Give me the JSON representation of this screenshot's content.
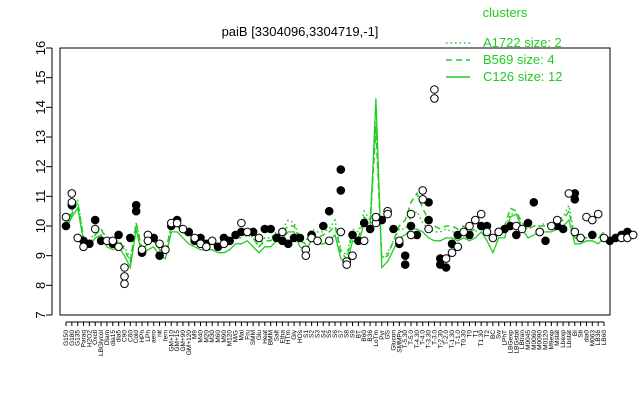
{
  "chart_data": {
    "type": "line",
    "title": "paiB [3304096,3304719,-1]",
    "xlabel": "",
    "ylabel": "",
    "ylim": [
      7,
      16
    ],
    "y_ticks": [
      7,
      8,
      9,
      10,
      11,
      12,
      13,
      14,
      15,
      16
    ],
    "x_tick_labels": [
      "G150",
      "G180",
      "G135",
      "Paraq",
      "H2O2",
      "Oxctl",
      "LBGlycol",
      "Diam",
      "dia15",
      "dia5",
      "C90",
      "C60",
      "Cold",
      "HPh",
      "LPh",
      "aero",
      "nit",
      "fern",
      "GM+10",
      "GM+15",
      "GM+90",
      "GM+120",
      "M9",
      "M40",
      "M20",
      "M30",
      "M60",
      "M90",
      "M120",
      "M/G",
      "Mal",
      "Fru",
      "SMM",
      "Glu",
      "Heat",
      "BMM",
      "Salt",
      "Etha",
      "HTm",
      "Gly",
      "HOs",
      "S1",
      "S2",
      "S3",
      "S4",
      "S5",
      "S6",
      "S7",
      "S8",
      "S9",
      "BT",
      "B60",
      "B36",
      "LoTm",
      "Pyr",
      "GS",
      "Glucon",
      "SMMPy",
      "T-5.30",
      "T-5.0",
      "T-4.30",
      "T-4.0",
      "T-3.30",
      "T-3.0",
      "T-2.30",
      "T-2.0",
      "T-1.30",
      "T-1.0",
      "T0.30",
      "T0",
      "T1",
      "T1.30",
      "T2",
      "BC",
      "Sw",
      "LPhT",
      "LBGexp",
      "LBGstat",
      "LBtran",
      "M0045",
      "M0060",
      "M0090",
      "M0120",
      "M9exp",
      "Mstat",
      "Lbexp",
      "Lbstat",
      "BI",
      "Sti",
      "dia0",
      "M063",
      "LB36",
      "LB60"
    ],
    "clusters_title": "clusters",
    "legend_position": "top-right",
    "series": [
      {
        "name": "A1722 size: 2",
        "style": "dotted",
        "values": [
          10.1,
          10.5,
          10.9,
          9.6,
          9.5,
          9.8,
          9.9,
          9.6,
          9.4,
          9.5,
          9.3,
          8.9,
          10.1,
          9.2,
          9.5,
          9.6,
          9.2,
          9.1,
          10.0,
          10.0,
          9.9,
          9.7,
          9.5,
          9.5,
          9.4,
          9.5,
          9.4,
          9.3,
          9.5,
          9.7,
          9.7,
          9.8,
          9.6,
          9.3,
          9.6,
          9.6,
          9.8,
          9.9,
          10.2,
          10.1,
          9.6,
          9.5,
          9.9,
          9.8,
          9.8,
          9.9,
          10.2,
          9.2,
          9.0,
          9.9,
          9.8,
          10.5,
          10.2,
          13.5,
          8.9,
          9.1,
          9.5,
          9.9,
          9.9,
          10.3,
          10.5,
          10.1,
          9.9,
          9.8,
          9.8,
          9.9,
          9.8,
          9.8,
          9.9,
          9.7,
          9.8,
          10.0,
          9.8,
          9.5,
          9.9,
          9.9,
          10.4,
          10.4,
          10.0,
          9.9,
          10.0,
          10.0,
          10.1,
          10.0,
          10.2,
          10.3,
          10.7,
          9.6,
          9.6,
          9.6,
          9.6,
          9.6,
          9.7
        ]
      },
      {
        "name": "B569 size: 4",
        "style": "dashed",
        "values": [
          10.0,
          10.4,
          10.8,
          9.6,
          9.4,
          9.7,
          9.9,
          9.5,
          9.4,
          9.5,
          9.2,
          8.8,
          10.1,
          9.2,
          9.4,
          9.5,
          9.2,
          9.1,
          10.0,
          10.0,
          9.8,
          9.6,
          9.5,
          9.4,
          9.4,
          9.4,
          9.3,
          9.3,
          9.4,
          9.6,
          9.6,
          9.7,
          9.6,
          9.3,
          9.5,
          9.5,
          9.7,
          9.8,
          10.0,
          10.0,
          9.5,
          9.4,
          9.8,
          9.6,
          9.7,
          9.8,
          10.0,
          9.1,
          8.9,
          9.8,
          9.6,
          10.3,
          10.1,
          13.3,
          8.9,
          9.0,
          9.5,
          10.0,
          10.2,
          10.8,
          11.1,
          10.6,
          10.2,
          10.0,
          9.9,
          10.0,
          10.0,
          9.9,
          10.0,
          9.8,
          9.9,
          10.1,
          9.9,
          9.6,
          9.9,
          10.0,
          10.6,
          10.5,
          10.1,
          9.9,
          10.0,
          10.0,
          10.0,
          10.0,
          10.1,
          10.2,
          10.5,
          9.6,
          9.6,
          9.6,
          9.7,
          9.6,
          9.8
        ]
      },
      {
        "name": "C126 size: 12",
        "style": "solid",
        "values": [
          9.9,
          10.3,
          10.6,
          9.5,
          9.3,
          9.6,
          9.7,
          9.3,
          9.2,
          9.3,
          9.0,
          8.6,
          9.9,
          9.0,
          9.2,
          9.3,
          9.0,
          8.9,
          9.8,
          9.8,
          9.6,
          9.4,
          9.3,
          9.2,
          9.2,
          9.2,
          9.1,
          9.1,
          9.2,
          9.4,
          9.4,
          9.5,
          9.3,
          9.1,
          9.3,
          9.3,
          9.5,
          9.6,
          9.8,
          9.8,
          9.3,
          9.2,
          9.5,
          9.4,
          9.4,
          9.5,
          9.7,
          8.9,
          8.7,
          9.5,
          9.4,
          10.1,
          9.8,
          14.3,
          8.6,
          8.8,
          9.2,
          9.6,
          9.7,
          9.9,
          9.9,
          9.8,
          9.6,
          9.5,
          9.5,
          9.6,
          9.6,
          9.5,
          9.6,
          9.5,
          9.6,
          9.8,
          9.5,
          9.1,
          9.6,
          9.6,
          10.3,
          10.4,
          9.9,
          9.6,
          9.7,
          9.8,
          9.8,
          9.8,
          9.9,
          10.0,
          10.2,
          9.4,
          9.4,
          9.5,
          9.5,
          9.4,
          9.6
        ]
      }
    ],
    "points_open": [
      [
        1,
        10.3
      ],
      [
        2,
        10.8
      ],
      [
        2,
        11.1
      ],
      [
        3,
        9.6
      ],
      [
        4,
        9.3
      ],
      [
        6,
        9.9
      ],
      [
        8,
        9.5
      ],
      [
        9,
        9.5
      ],
      [
        10,
        9.3
      ],
      [
        11,
        8.3
      ],
      [
        11,
        8.05
      ],
      [
        11,
        8.6
      ],
      [
        14,
        9.2
      ],
      [
        15,
        9.7
      ],
      [
        15,
        9.5
      ],
      [
        17,
        9.4
      ],
      [
        18,
        9.2
      ],
      [
        19,
        10.1
      ],
      [
        20,
        10.1
      ],
      [
        21,
        9.9
      ],
      [
        23,
        9.6
      ],
      [
        24,
        9.4
      ],
      [
        25,
        9.3
      ],
      [
        26,
        9.5
      ],
      [
        28,
        9.4
      ],
      [
        31,
        10.1
      ],
      [
        32,
        9.8
      ],
      [
        34,
        9.6
      ],
      [
        38,
        9.8
      ],
      [
        42,
        9.2
      ],
      [
        42,
        9.0
      ],
      [
        43,
        9.6
      ],
      [
        44,
        9.5
      ],
      [
        46,
        9.5
      ],
      [
        48,
        9.8
      ],
      [
        49,
        8.8
      ],
      [
        49,
        8.7
      ],
      [
        50,
        9.0
      ],
      [
        52,
        9.5
      ],
      [
        54,
        10.1
      ],
      [
        54,
        10.3
      ],
      [
        56,
        10.5
      ],
      [
        56,
        10.4
      ],
      [
        58,
        9.5
      ],
      [
        60,
        10.4
      ],
      [
        60,
        9.7
      ],
      [
        62,
        10.9
      ],
      [
        62,
        11.2
      ],
      [
        63,
        9.9
      ],
      [
        64,
        14.6
      ],
      [
        64,
        14.3
      ],
      [
        66,
        8.9
      ],
      [
        67,
        9.1
      ],
      [
        68,
        9.3
      ],
      [
        69,
        9.8
      ],
      [
        70,
        10.0
      ],
      [
        71,
        10.2
      ],
      [
        72,
        10.4
      ],
      [
        73,
        9.8
      ],
      [
        74,
        9.6
      ],
      [
        75,
        9.8
      ],
      [
        78,
        10.0
      ],
      [
        79,
        9.9
      ],
      [
        82,
        9.8
      ],
      [
        84,
        10.0
      ],
      [
        85,
        10.2
      ],
      [
        87,
        11.1
      ],
      [
        88,
        9.8
      ],
      [
        89,
        9.6
      ],
      [
        90,
        10.3
      ],
      [
        91,
        10.2
      ],
      [
        92,
        10.4
      ],
      [
        93,
        9.6
      ],
      [
        96,
        9.6
      ],
      [
        97,
        9.6
      ],
      [
        98,
        9.7
      ]
    ],
    "points_filled": [
      [
        1,
        10.0
      ],
      [
        2,
        10.7
      ],
      [
        4,
        9.5
      ],
      [
        5,
        9.4
      ],
      [
        6,
        10.2
      ],
      [
        7,
        9.5
      ],
      [
        9,
        9.4
      ],
      [
        10,
        9.7
      ],
      [
        12,
        9.6
      ],
      [
        13,
        10.7
      ],
      [
        13,
        10.5
      ],
      [
        14,
        9.1
      ],
      [
        16,
        9.6
      ],
      [
        17,
        9.0
      ],
      [
        19,
        10.0
      ],
      [
        20,
        10.2
      ],
      [
        22,
        9.8
      ],
      [
        23,
        9.5
      ],
      [
        24,
        9.6
      ],
      [
        25,
        9.4
      ],
      [
        27,
        9.3
      ],
      [
        28,
        9.6
      ],
      [
        29,
        9.5
      ],
      [
        30,
        9.7
      ],
      [
        31,
        9.8
      ],
      [
        33,
        9.8
      ],
      [
        35,
        9.9
      ],
      [
        36,
        9.9
      ],
      [
        37,
        9.6
      ],
      [
        38,
        9.5
      ],
      [
        39,
        9.4
      ],
      [
        40,
        9.6
      ],
      [
        41,
        9.6
      ],
      [
        43,
        9.7
      ],
      [
        45,
        10.0
      ],
      [
        46,
        10.5
      ],
      [
        48,
        11.9
      ],
      [
        48,
        11.2
      ],
      [
        50,
        9.7
      ],
      [
        51,
        9.5
      ],
      [
        52,
        10.1
      ],
      [
        53,
        9.9
      ],
      [
        55,
        10.2
      ],
      [
        57,
        9.9
      ],
      [
        58,
        9.4
      ],
      [
        59,
        8.7
      ],
      [
        59,
        9.0
      ],
      [
        60,
        10.0
      ],
      [
        61,
        9.7
      ],
      [
        63,
        10.8
      ],
      [
        63,
        10.2
      ],
      [
        65,
        8.7
      ],
      [
        65,
        8.9
      ],
      [
        66,
        8.6
      ],
      [
        67,
        9.4
      ],
      [
        68,
        9.7
      ],
      [
        70,
        9.7
      ],
      [
        72,
        10.0
      ],
      [
        73,
        10.0
      ],
      [
        75,
        9.8
      ],
      [
        76,
        9.9
      ],
      [
        77,
        10.0
      ],
      [
        78,
        9.7
      ],
      [
        80,
        10.1
      ],
      [
        81,
        10.8
      ],
      [
        82,
        9.8
      ],
      [
        83,
        9.5
      ],
      [
        85,
        10.0
      ],
      [
        86,
        9.9
      ],
      [
        88,
        10.9
      ],
      [
        88,
        11.1
      ],
      [
        91,
        9.7
      ],
      [
        94,
        9.5
      ],
      [
        95,
        9.6
      ],
      [
        96,
        9.7
      ],
      [
        97,
        9.8
      ]
    ]
  }
}
